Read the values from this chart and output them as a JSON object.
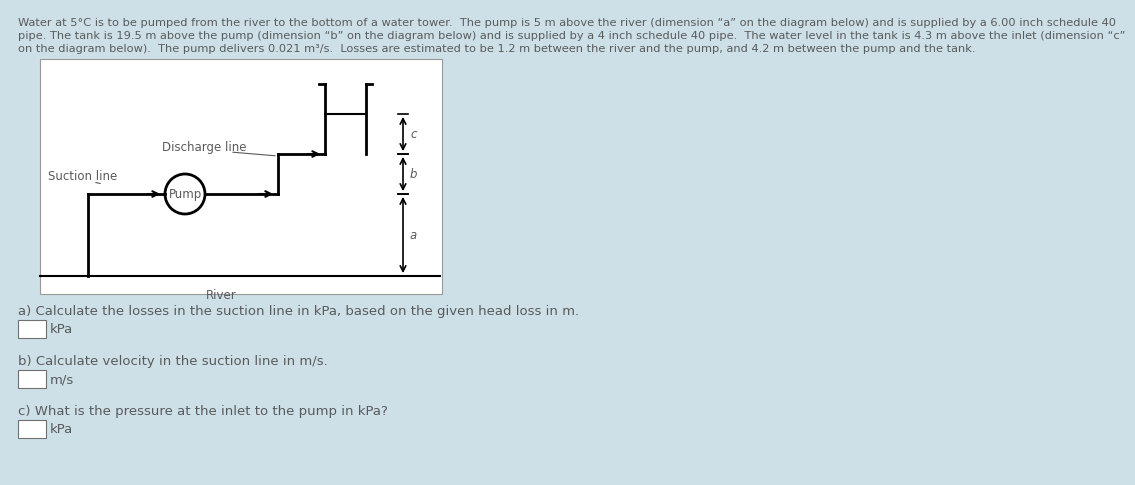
{
  "background_color": "#cde0e8",
  "diagram_bg": "#ffffff",
  "text_color": "#5a5a5a",
  "line_color": "#000000",
  "title_text_lines": [
    "Water at 5°C is to be pumped from the river to the bottom of a water tower.  The pump is 5 m above the river (dimension “a” on the diagram below) and is supplied by a 6.00 inch schedule 40",
    "pipe. The tank is 19.5 m above the pump (dimension “b” on the diagram below) and is supplied by a 4 inch schedule 40 pipe.  The water level in the tank is 4.3 m above the inlet (dimension “c”",
    "on the diagram below).  The pump delivers 0.021 m³/s.  Losses are estimated to be 1.2 m between the river and the pump, and 4.2 m between the pump and the tank."
  ],
  "label_discharge": "Discharge line",
  "label_suction": "Suction line",
  "label_pump": "Pump",
  "label_river": "River",
  "label_a": "a",
  "label_b": "b",
  "label_c": "c",
  "qa_items": [
    {
      "text": "a) Calculate the losses in the suction line in kPa, based on the given head loss in m.",
      "unit": "kPa"
    },
    {
      "text": "b) Calculate velocity in the suction line in m/s.",
      "unit": "m/s"
    },
    {
      "text": "c) What is the pressure at the inlet to the pump in kPa?",
      "unit": "kPa"
    }
  ],
  "font_size_title": 8.2,
  "font_size_diagram": 8.5,
  "font_size_qa": 9.5
}
